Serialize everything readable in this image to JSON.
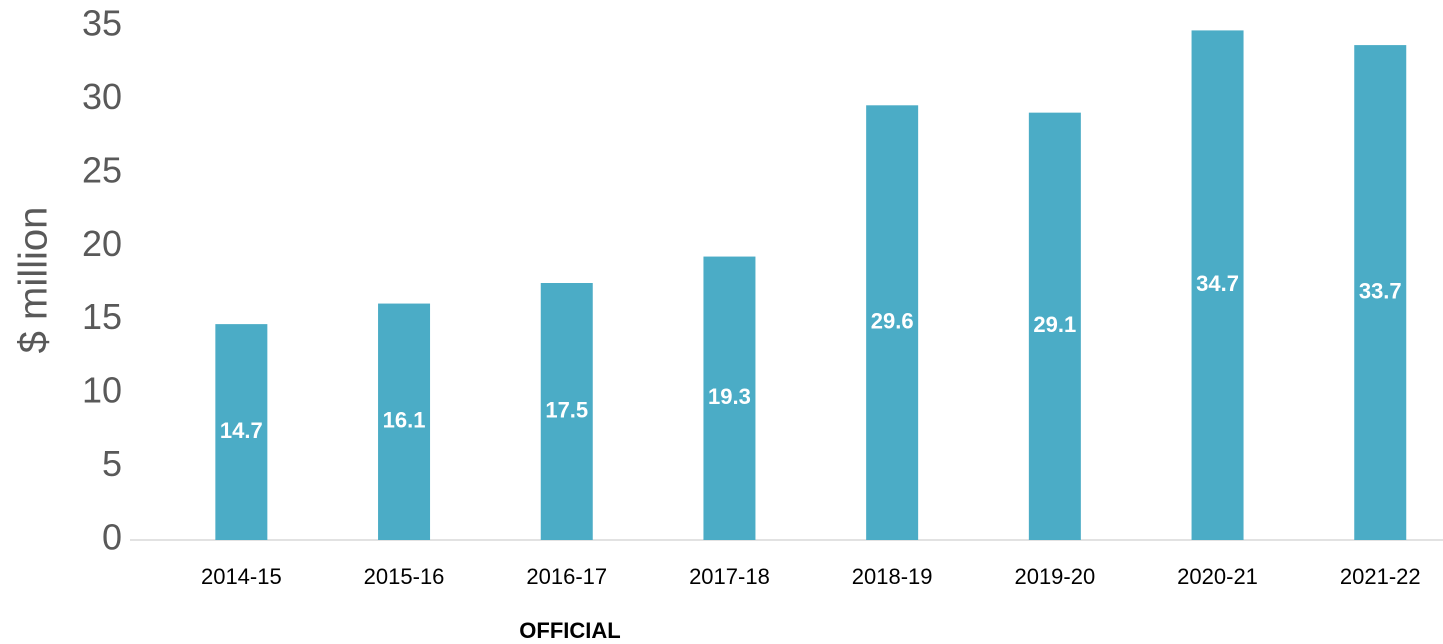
{
  "chart_data": {
    "type": "bar",
    "y_label": "$ million",
    "footer": "OFFICIAL",
    "categories": [
      "2014-15",
      "2015-16",
      "2016-17",
      "2017-18",
      "2018-19",
      "2019-20",
      "2020-21",
      "2021-22"
    ],
    "values": [
      14.7,
      16.1,
      17.5,
      19.3,
      29.6,
      29.1,
      34.7,
      33.7
    ],
    "color": "#4bacc6",
    "ylim": [
      0,
      35
    ],
    "yticks": [
      0,
      5,
      10,
      15,
      20,
      25,
      30,
      35
    ],
    "grid": false
  }
}
